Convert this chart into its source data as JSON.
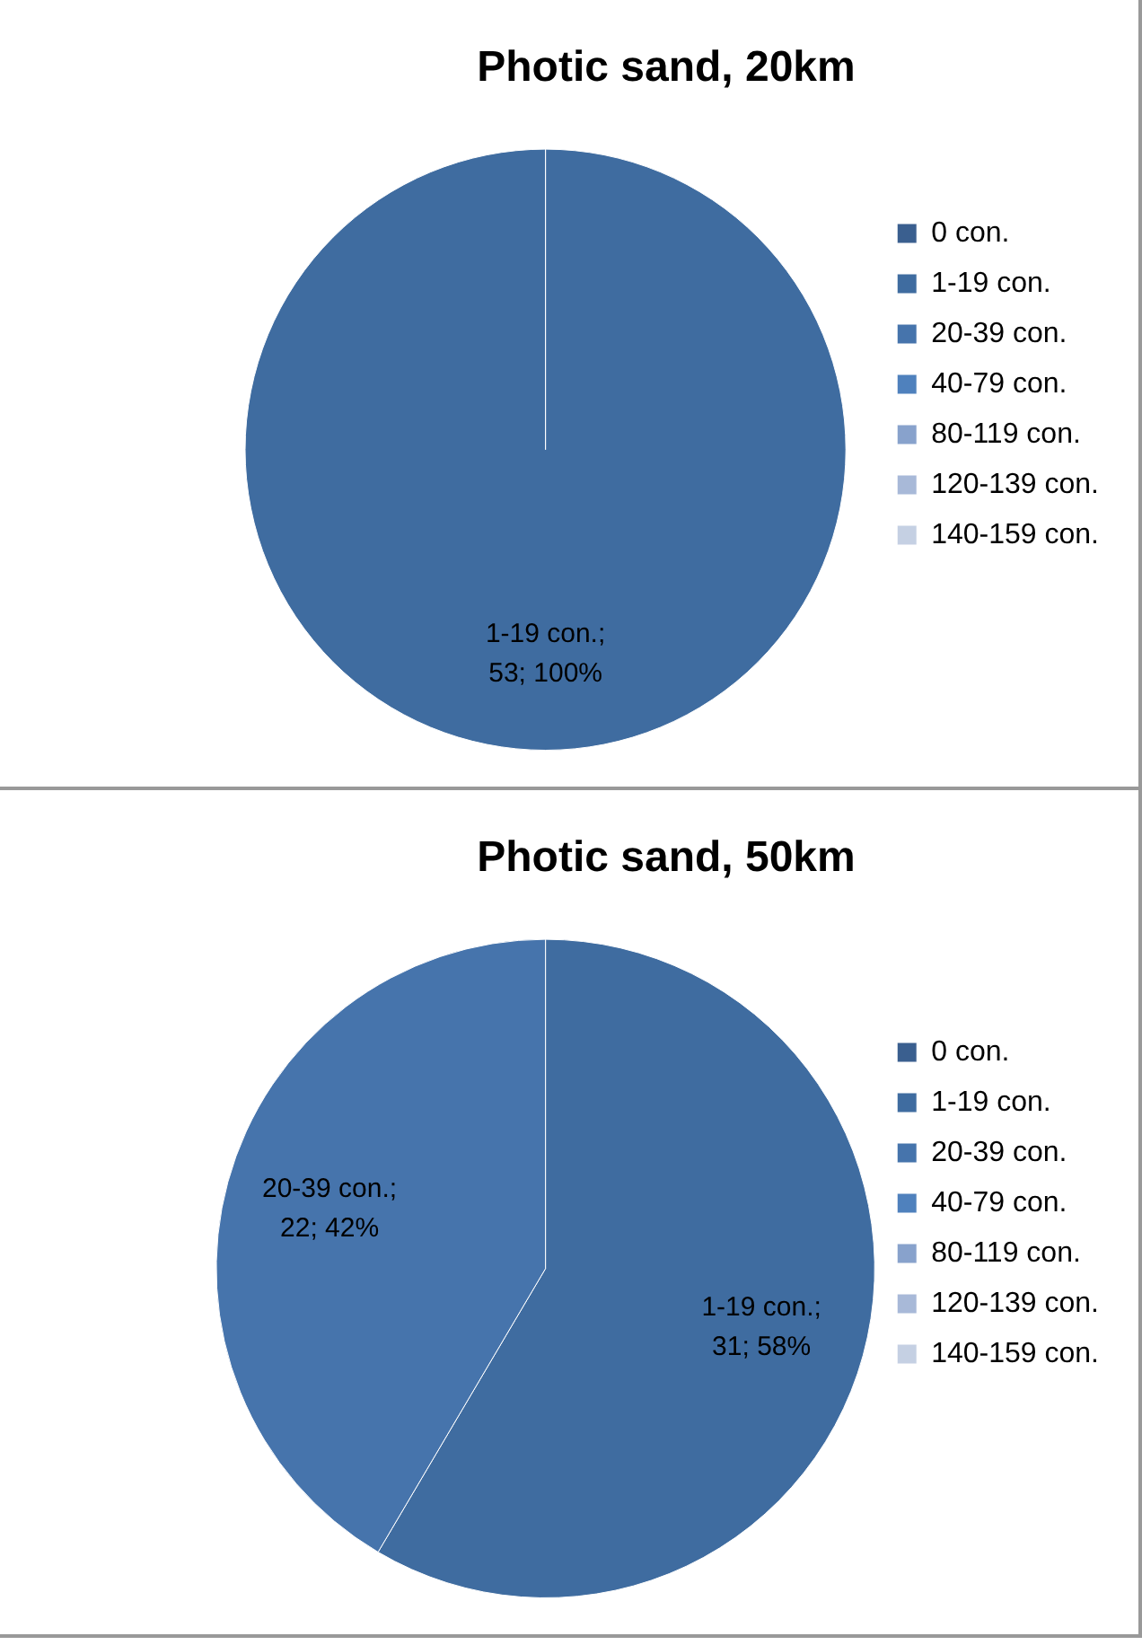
{
  "chart_data": [
    {
      "type": "pie",
      "title": "Photic sand, 20km",
      "categories": [
        "0 con.",
        "1-19 con.",
        "20-39 con.",
        "40-79 con.",
        "80-119 con.",
        "120-139 con.",
        "140-159 con."
      ],
      "values": [
        0,
        53,
        0,
        0,
        0,
        0,
        0
      ],
      "value_labels": [
        null,
        "1-19 con.;\n53; 100%",
        null,
        null,
        null,
        null,
        null
      ],
      "colors": [
        "#3a5f8f",
        "#3f6ca0",
        "#4674ac",
        "#4f81bd",
        "#88a2cc",
        "#a8b9d8",
        "#c5d0e3"
      ],
      "legend": "right"
    },
    {
      "type": "pie",
      "title": "Photic sand, 50km",
      "categories": [
        "0 con.",
        "1-19 con.",
        "20-39 con.",
        "40-79 con.",
        "80-119 con.",
        "120-139 con.",
        "140-159 con."
      ],
      "values": [
        0,
        31,
        22,
        0,
        0,
        0,
        0
      ],
      "value_labels": [
        null,
        "1-19 con.;\n31; 58%",
        "20-39 con.;\n22; 42%",
        null,
        null,
        null,
        null
      ],
      "colors": [
        "#3a5f8f",
        "#3f6ca0",
        "#4674ac",
        "#4f81bd",
        "#88a2cc",
        "#a8b9d8",
        "#c5d0e3"
      ],
      "legend": "right"
    }
  ]
}
